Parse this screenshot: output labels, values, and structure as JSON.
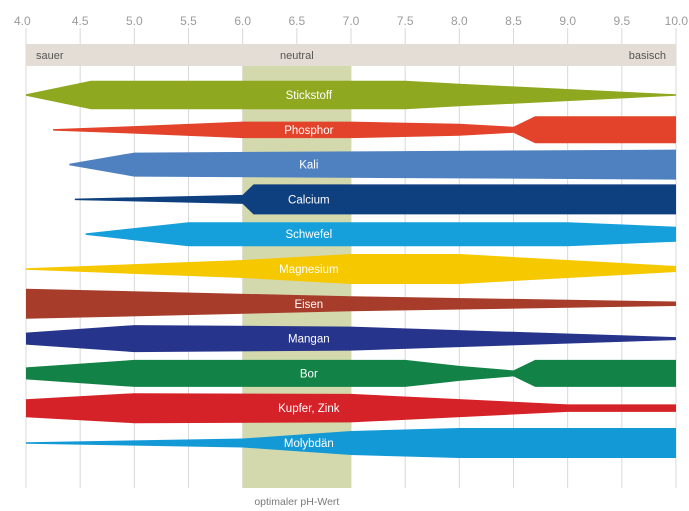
{
  "chart_data": {
    "type": "area",
    "title": "",
    "xlabel": "",
    "ylabel": "",
    "xlim": [
      4.0,
      10.0
    ],
    "ticks": [
      "4.0",
      "4.5",
      "5.0",
      "5.5",
      "6.0",
      "6.5",
      "7.0",
      "7.5",
      "8.0",
      "8.5",
      "9.0",
      "9.5",
      "10.0"
    ],
    "zones": {
      "left": "sauer",
      "center": "neutral",
      "right": "basisch"
    },
    "optimal_range": {
      "from": 6.0,
      "to": 7.0,
      "label": "optimaler pH-Wert"
    },
    "max_width_note": "",
    "series": [
      {
        "name": "Stickstoff",
        "color": "#8ea81f",
        "profile": [
          [
            4.0,
            0.05
          ],
          [
            4.6,
            0.95
          ],
          [
            7.5,
            0.95
          ],
          [
            8.0,
            0.75
          ],
          [
            10.0,
            0.05
          ]
        ]
      },
      {
        "name": "Phosphor",
        "color": "#e2432a",
        "profile": [
          [
            4.25,
            0.05
          ],
          [
            5.0,
            0.25
          ],
          [
            6.0,
            0.55
          ],
          [
            7.0,
            0.55
          ],
          [
            8.0,
            0.4
          ],
          [
            8.5,
            0.2
          ],
          [
            8.7,
            0.9
          ],
          [
            10.0,
            0.9
          ]
        ]
      },
      {
        "name": "Kali",
        "color": "#4f80bf",
        "profile": [
          [
            4.4,
            0.05
          ],
          [
            5.0,
            0.8
          ],
          [
            10.0,
            1.0
          ]
        ]
      },
      {
        "name": "Calcium",
        "color": "#0e3f7f",
        "profile": [
          [
            4.45,
            0.05
          ],
          [
            6.0,
            0.3
          ],
          [
            6.1,
            1.0
          ],
          [
            10.0,
            1.0
          ]
        ]
      },
      {
        "name": "Schwefel",
        "color": "#15a0db",
        "profile": [
          [
            4.55,
            0.05
          ],
          [
            5.5,
            0.8
          ],
          [
            9.0,
            0.8
          ],
          [
            10.0,
            0.5
          ]
        ]
      },
      {
        "name": "Magnesium",
        "color": "#f5c800",
        "profile": [
          [
            4.0,
            0.05
          ],
          [
            6.0,
            0.6
          ],
          [
            7.0,
            1.0
          ],
          [
            8.0,
            1.0
          ],
          [
            10.0,
            0.2
          ]
        ]
      },
      {
        "name": "Eisen",
        "color": "#a83c2a",
        "profile": [
          [
            4.0,
            1.0
          ],
          [
            7.0,
            0.5
          ],
          [
            10.0,
            0.15
          ]
        ]
      },
      {
        "name": "Mangan",
        "color": "#27348b",
        "profile": [
          [
            4.0,
            0.4
          ],
          [
            5.0,
            0.9
          ],
          [
            7.0,
            0.8
          ],
          [
            10.0,
            0.1
          ]
        ]
      },
      {
        "name": "Bor",
        "color": "#128246",
        "profile": [
          [
            4.0,
            0.4
          ],
          [
            5.0,
            0.9
          ],
          [
            7.5,
            0.9
          ],
          [
            8.0,
            0.5
          ],
          [
            8.5,
            0.2
          ],
          [
            8.7,
            0.9
          ],
          [
            10.0,
            0.9
          ]
        ]
      },
      {
        "name": "Kupfer, Zink",
        "color": "#d52128",
        "profile": [
          [
            4.0,
            0.6
          ],
          [
            5.0,
            1.0
          ],
          [
            7.0,
            0.95
          ],
          [
            9.0,
            0.25
          ],
          [
            10.0,
            0.25
          ]
        ]
      },
      {
        "name": "Molybdän",
        "color": "#139ad6",
        "profile": [
          [
            4.0,
            0.05
          ],
          [
            6.0,
            0.3
          ],
          [
            7.0,
            0.8
          ],
          [
            8.0,
            1.0
          ],
          [
            10.0,
            1.0
          ]
        ]
      }
    ]
  }
}
